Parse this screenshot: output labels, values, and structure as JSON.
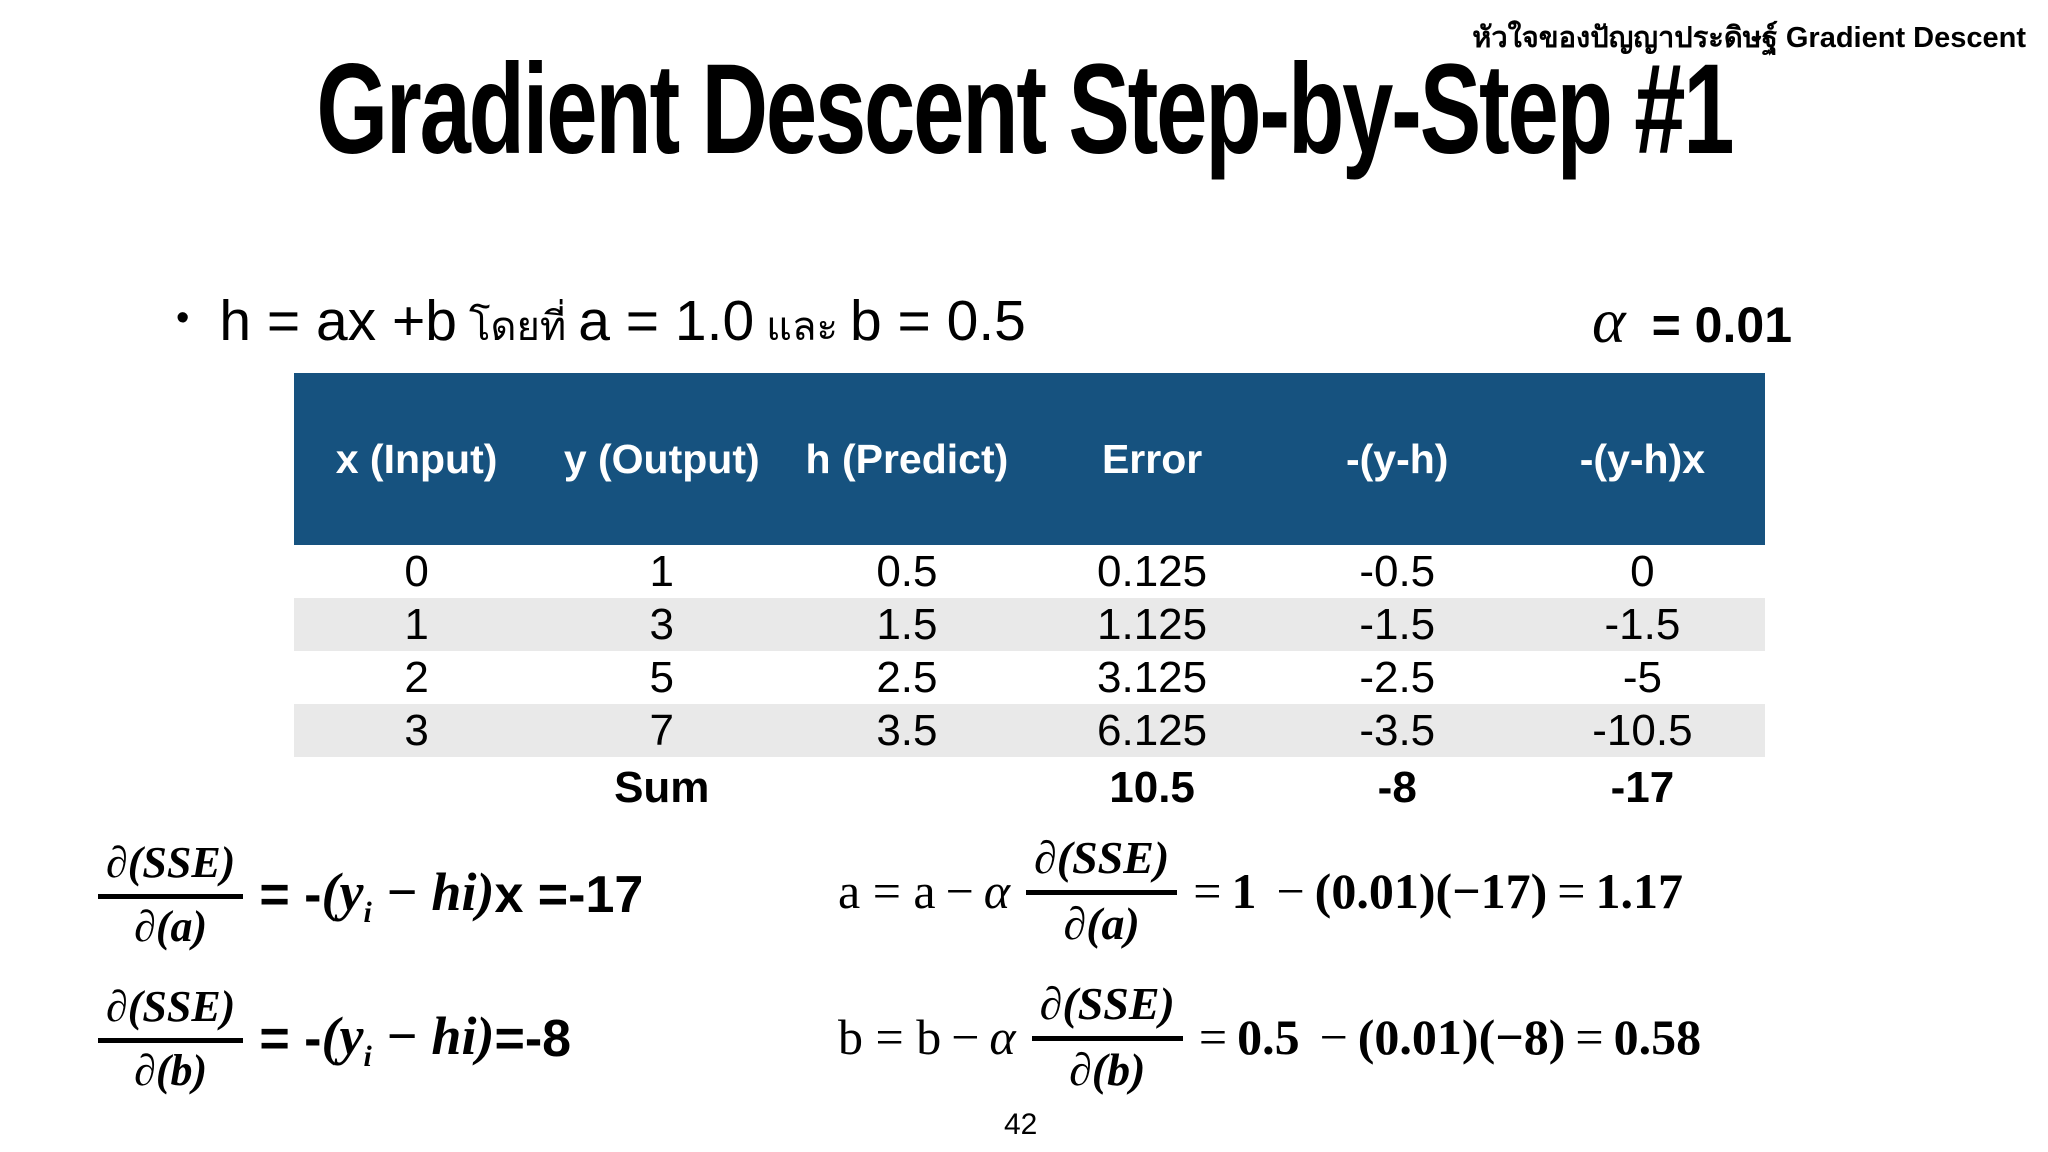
{
  "page": {
    "corner_note": "หัวใจของปัญญาประดิษฐ์ Gradient Descent",
    "title": "Gradient Descent Step-by-Step #1",
    "page_number": "42"
  },
  "bullet": {
    "marker": "•",
    "main": "h = ax +b",
    "thai1": "โดยที่",
    "a_part": "a = 1.0",
    "thai2": "และ",
    "b_part": "b = 0.5"
  },
  "alpha": {
    "symbol": "α",
    "value": "= 0.01"
  },
  "colors": {
    "header_bg": "#16527F",
    "stripe_bg": "#E9E9E9",
    "text": "#000000"
  },
  "table": {
    "headers": [
      "x (Input)",
      "y (Output)",
      "h (Predict)",
      "Error",
      "-(y-h)",
      "-(y-h)x"
    ],
    "rows": [
      [
        "0",
        "1",
        "0.5",
        "0.125",
        "-0.5",
        "0"
      ],
      [
        "1",
        "3",
        "1.5",
        "1.125",
        "-1.5",
        "-1.5"
      ],
      [
        "2",
        "5",
        "2.5",
        "3.125",
        "-2.5",
        "-5"
      ],
      [
        "3",
        "7",
        "3.5",
        "6.125",
        "-3.5",
        "-10.5"
      ]
    ],
    "sum_row": [
      "",
      "Sum",
      "",
      "10.5",
      "-8",
      "-17"
    ]
  },
  "grad_a": {
    "num": "∂(SSE)",
    "den": "∂(a)",
    "eq": "= -",
    "body_open": "(y",
    "sub": "i",
    "body_rest": " − hi)",
    "tail": " x =  ",
    "value": "-17"
  },
  "grad_b": {
    "num": "∂(SSE)",
    "den": "∂(b)",
    "eq": "= -",
    "body_open": "(y",
    "sub": "i",
    "body_rest": " − hi)",
    "tail": " = ",
    "value": "-8"
  },
  "upd_a": {
    "lead": "a = a",
    "minus": "−",
    "alpha": "α",
    "num": "∂(SSE)",
    "den": "∂(a)",
    "eq1": "=",
    "v1": "1",
    "op": "−",
    "v2": "(0.01)(−17)",
    "eq2": "=",
    "v3": "1.17"
  },
  "upd_b": {
    "lead": "b = b",
    "minus": "−",
    "alpha": "α",
    "num": "∂(SSE)",
    "den": "∂(b)",
    "eq1": "=",
    "v1": "0.5",
    "op": "−",
    "v2": "(0.01)(−8)",
    "eq2": "=",
    "v3": "0.58"
  }
}
